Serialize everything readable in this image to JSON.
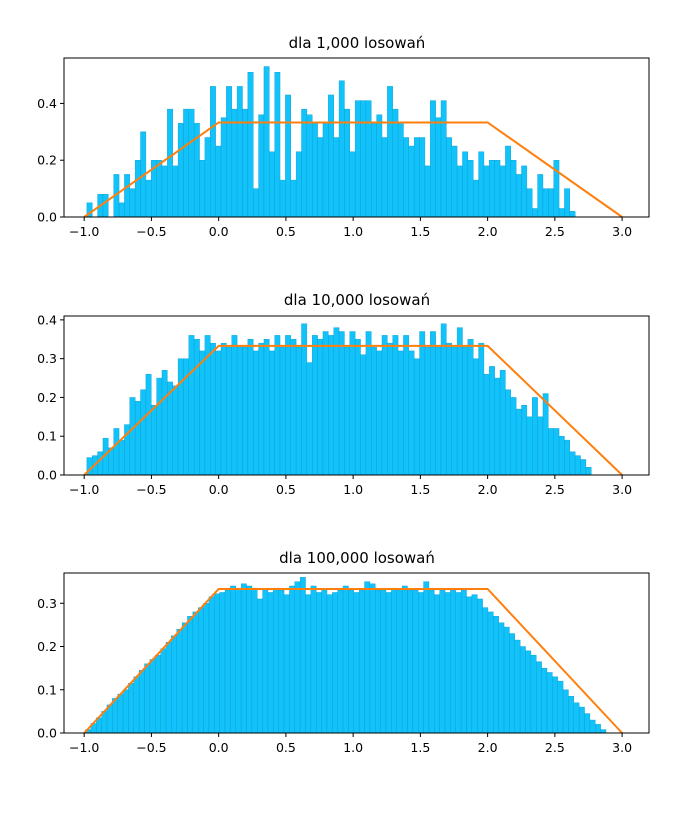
{
  "chart_data": [
    {
      "type": "bar",
      "title": "dla 1,000 losowań",
      "xlim": [
        -1.15,
        3.2
      ],
      "ylim": [
        0,
        0.56
      ],
      "xticks": [
        -1.0,
        -0.5,
        0.0,
        0.5,
        1.0,
        1.5,
        2.0,
        2.5,
        3.0
      ],
      "xtick_labels": [
        "−1.0",
        "−0.5",
        "0.0",
        "0.5",
        "1.0",
        "1.5",
        "2.0",
        "2.5",
        "3.0"
      ],
      "yticks": [
        0.0,
        0.2,
        0.4
      ],
      "ytick_labels": [
        "0.0",
        "0.2",
        "0.4"
      ],
      "bins": {
        "start": -0.98,
        "width": 0.0399
      },
      "values": [
        0.05,
        0.0,
        0.08,
        0.08,
        0.0,
        0.15,
        0.05,
        0.15,
        0.1,
        0.2,
        0.3,
        0.13,
        0.2,
        0.2,
        0.18,
        0.38,
        0.18,
        0.33,
        0.38,
        0.38,
        0.33,
        0.2,
        0.28,
        0.46,
        0.25,
        0.35,
        0.46,
        0.38,
        0.46,
        0.38,
        0.51,
        0.1,
        0.36,
        0.53,
        0.23,
        0.51,
        0.13,
        0.43,
        0.13,
        0.23,
        0.38,
        0.36,
        0.33,
        0.28,
        0.33,
        0.43,
        0.28,
        0.48,
        0.38,
        0.23,
        0.41,
        0.41,
        0.41,
        0.33,
        0.36,
        0.28,
        0.46,
        0.38,
        0.33,
        0.28,
        0.25,
        0.28,
        0.28,
        0.18,
        0.41,
        0.35,
        0.41,
        0.28,
        0.25,
        0.18,
        0.23,
        0.2,
        0.13,
        0.23,
        0.18,
        0.2,
        0.2,
        0.18,
        0.25,
        0.2,
        0.15,
        0.18,
        0.1,
        0.03,
        0.15,
        0.1,
        0.1,
        0.2,
        0.03,
        0.1,
        0.02
      ],
      "density": {
        "x": [
          -1.0,
          0.0,
          2.0,
          3.0
        ],
        "y": [
          0.0,
          0.333,
          0.333,
          0.0
        ]
      },
      "colors": {
        "bars": "#12c2fa",
        "density": "#ff7f0e"
      }
    },
    {
      "type": "bar",
      "title": "dla 10,000 losowań",
      "xlim": [
        -1.15,
        3.2
      ],
      "ylim": [
        0,
        0.41
      ],
      "xticks": [
        -1.0,
        -0.5,
        0.0,
        0.5,
        1.0,
        1.5,
        2.0,
        2.5,
        3.0
      ],
      "xtick_labels": [
        "−1.0",
        "−0.5",
        "0.0",
        "0.5",
        "1.0",
        "1.5",
        "2.0",
        "2.5",
        "3.0"
      ],
      "yticks": [
        0.0,
        0.1,
        0.2,
        0.3,
        0.4
      ],
      "ytick_labels": [
        "0.0",
        "0.1",
        "0.2",
        "0.3",
        "0.4"
      ],
      "bins": {
        "start": -0.98,
        "width": 0.0399
      },
      "values": [
        0.045,
        0.05,
        0.06,
        0.095,
        0.07,
        0.12,
        0.09,
        0.13,
        0.2,
        0.19,
        0.22,
        0.26,
        0.18,
        0.25,
        0.27,
        0.24,
        0.23,
        0.3,
        0.3,
        0.36,
        0.35,
        0.32,
        0.36,
        0.34,
        0.32,
        0.34,
        0.33,
        0.36,
        0.33,
        0.33,
        0.35,
        0.32,
        0.34,
        0.35,
        0.32,
        0.36,
        0.33,
        0.36,
        0.35,
        0.33,
        0.39,
        0.29,
        0.36,
        0.35,
        0.37,
        0.36,
        0.38,
        0.37,
        0.33,
        0.37,
        0.35,
        0.31,
        0.37,
        0.33,
        0.32,
        0.36,
        0.34,
        0.36,
        0.32,
        0.36,
        0.32,
        0.3,
        0.37,
        0.33,
        0.37,
        0.33,
        0.39,
        0.34,
        0.33,
        0.38,
        0.33,
        0.35,
        0.3,
        0.34,
        0.26,
        0.28,
        0.25,
        0.27,
        0.22,
        0.2,
        0.17,
        0.18,
        0.15,
        0.2,
        0.15,
        0.21,
        0.12,
        0.12,
        0.1,
        0.09,
        0.06,
        0.05,
        0.04,
        0.02
      ],
      "density": {
        "x": [
          -1.0,
          0.0,
          2.0,
          3.0
        ],
        "y": [
          0.0,
          0.333,
          0.333,
          0.0
        ]
      },
      "colors": {
        "bars": "#12c2fa",
        "density": "#ff7f0e"
      }
    },
    {
      "type": "bar",
      "title": "dla 100,000 losowań",
      "xlim": [
        -1.15,
        3.2
      ],
      "ylim": [
        0,
        0.37
      ],
      "xticks": [
        -1.0,
        -0.5,
        0.0,
        0.5,
        1.0,
        1.5,
        2.0,
        2.5,
        3.0
      ],
      "xtick_labels": [
        "−1.0",
        "−0.5",
        "0.0",
        "0.5",
        "1.0",
        "1.5",
        "2.0",
        "2.5",
        "3.0"
      ],
      "yticks": [
        0.0,
        0.1,
        0.2,
        0.3
      ],
      "ytick_labels": [
        "0.0",
        "0.1",
        "0.2",
        "0.3"
      ],
      "bins": {
        "start": -0.99,
        "width": 0.0399
      },
      "values": [
        0.008,
        0.022,
        0.035,
        0.05,
        0.065,
        0.08,
        0.09,
        0.1,
        0.115,
        0.13,
        0.145,
        0.16,
        0.17,
        0.18,
        0.195,
        0.21,
        0.225,
        0.24,
        0.255,
        0.27,
        0.28,
        0.29,
        0.3,
        0.315,
        0.322,
        0.325,
        0.33,
        0.34,
        0.335,
        0.345,
        0.34,
        0.335,
        0.31,
        0.33,
        0.325,
        0.335,
        0.33,
        0.32,
        0.34,
        0.35,
        0.36,
        0.32,
        0.34,
        0.325,
        0.33,
        0.32,
        0.325,
        0.33,
        0.34,
        0.33,
        0.325,
        0.33,
        0.35,
        0.345,
        0.33,
        0.33,
        0.325,
        0.335,
        0.33,
        0.34,
        0.33,
        0.33,
        0.325,
        0.35,
        0.33,
        0.32,
        0.33,
        0.325,
        0.33,
        0.325,
        0.33,
        0.315,
        0.32,
        0.31,
        0.29,
        0.28,
        0.27,
        0.255,
        0.245,
        0.23,
        0.215,
        0.2,
        0.19,
        0.18,
        0.165,
        0.15,
        0.14,
        0.13,
        0.12,
        0.1,
        0.085,
        0.07,
        0.06,
        0.045,
        0.03,
        0.02,
        0.008
      ],
      "density": {
        "x": [
          -1.0,
          0.0,
          2.0,
          3.0
        ],
        "y": [
          0.0,
          0.333,
          0.333,
          0.0
        ]
      },
      "colors": {
        "bars": "#12c2fa",
        "density": "#ff7f0e"
      }
    }
  ]
}
